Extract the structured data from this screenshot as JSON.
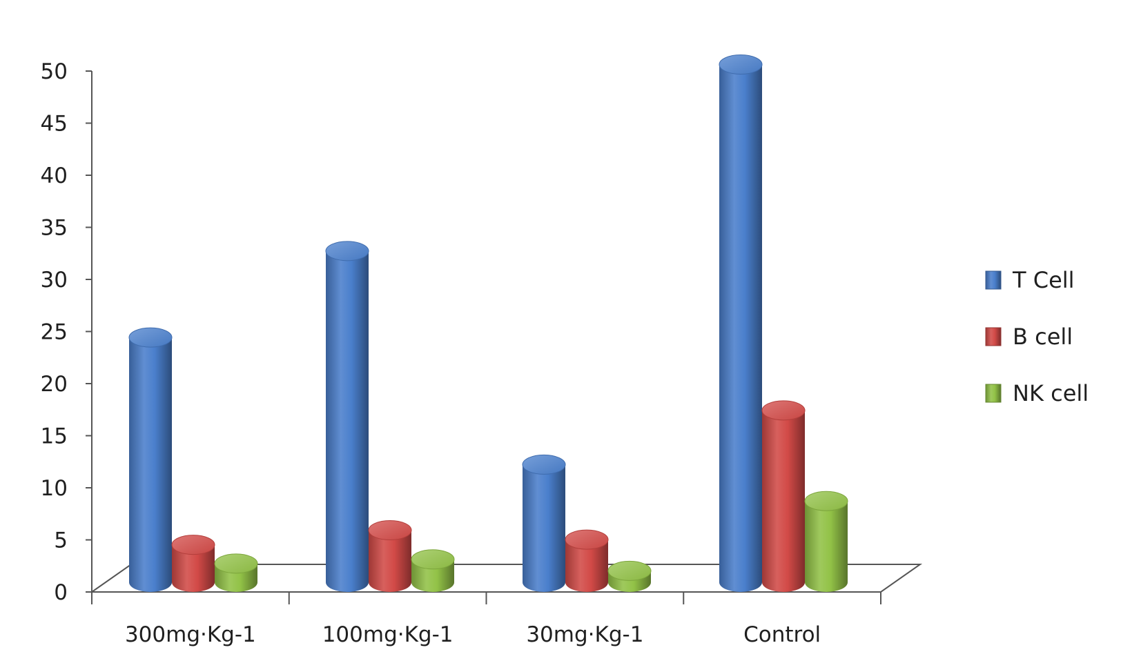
{
  "chart_data": {
    "type": "bar",
    "style": "3d-cylinder",
    "title": "",
    "xlabel": "",
    "ylabel": "",
    "categories": [
      "300mg·Kg-1",
      "100mg·Kg-1",
      "30mg·Kg-1",
      "Control"
    ],
    "series": [
      {
        "name": "T Cell",
        "color": "#4a7fcc",
        "values": [
          23.5,
          31.8,
          11.3,
          49.7
        ]
      },
      {
        "name": "B cell",
        "color": "#d24a47",
        "values": [
          3.6,
          5.0,
          4.1,
          16.5
        ]
      },
      {
        "name": "NK cell",
        "color": "#92c247",
        "values": [
          1.8,
          2.2,
          1.1,
          7.8
        ]
      }
    ],
    "ylim": [
      0,
      50
    ],
    "yticks": [
      0,
      5,
      10,
      15,
      20,
      25,
      30,
      35,
      40,
      45,
      50
    ],
    "grid": false,
    "legend_position": "right"
  }
}
